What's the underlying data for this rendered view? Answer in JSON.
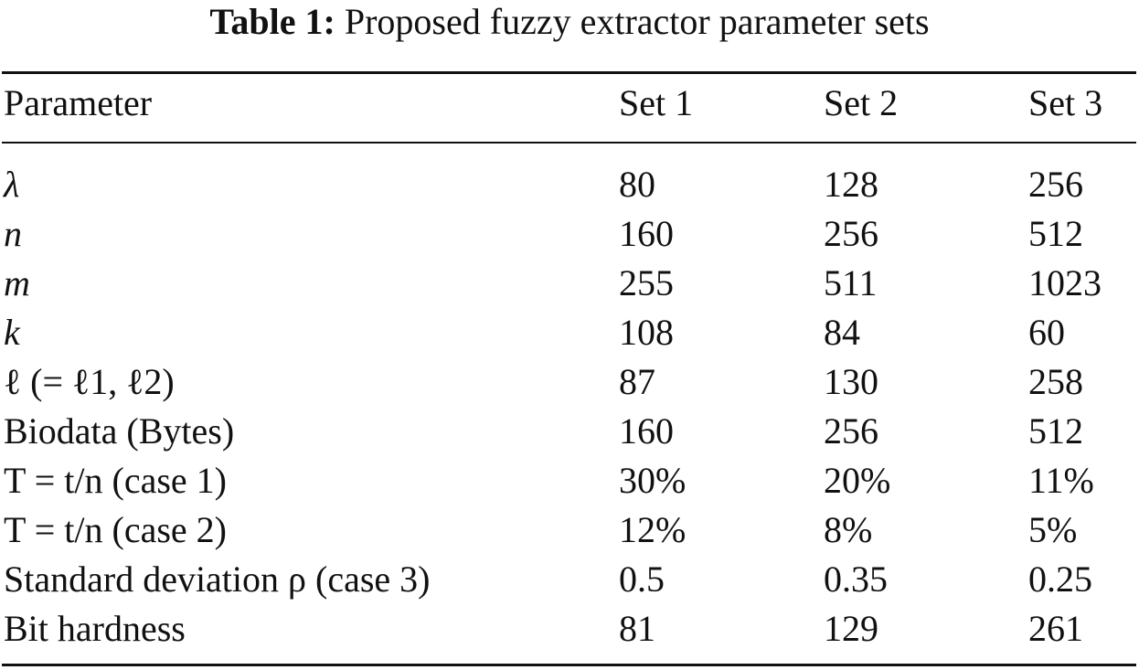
{
  "caption": {
    "label": "Table 1:",
    "text": "Proposed fuzzy extractor parameter sets"
  },
  "header": {
    "parameter": "Parameter",
    "sets": [
      "Set 1",
      "Set 2",
      "Set 3"
    ]
  },
  "rows": [
    {
      "parameter": "λ",
      "values": [
        "80",
        "128",
        "256"
      ]
    },
    {
      "parameter": "n",
      "values": [
        "160",
        "256",
        "512"
      ]
    },
    {
      "parameter": "m",
      "values": [
        "255",
        "511",
        "1023"
      ]
    },
    {
      "parameter": "k",
      "values": [
        "108",
        "84",
        "60"
      ]
    },
    {
      "parameter": "ℓ (= ℓ1, ℓ2)",
      "values": [
        "87",
        "130",
        "258"
      ]
    },
    {
      "parameter": "Biodata (Bytes)",
      "values": [
        "160",
        "256",
        "512"
      ]
    },
    {
      "parameter": "T = t/n (case 1)",
      "values": [
        "30%",
        "20%",
        "11%"
      ]
    },
    {
      "parameter": "T = t/n (case 2)",
      "values": [
        "12%",
        "8%",
        "5%"
      ]
    },
    {
      "parameter": "Standard deviation ρ (case 3)",
      "values": [
        "0.5",
        "0.35",
        "0.25"
      ]
    },
    {
      "parameter": "Bit hardness",
      "values": [
        "81",
        "129",
        "261"
      ]
    }
  ]
}
